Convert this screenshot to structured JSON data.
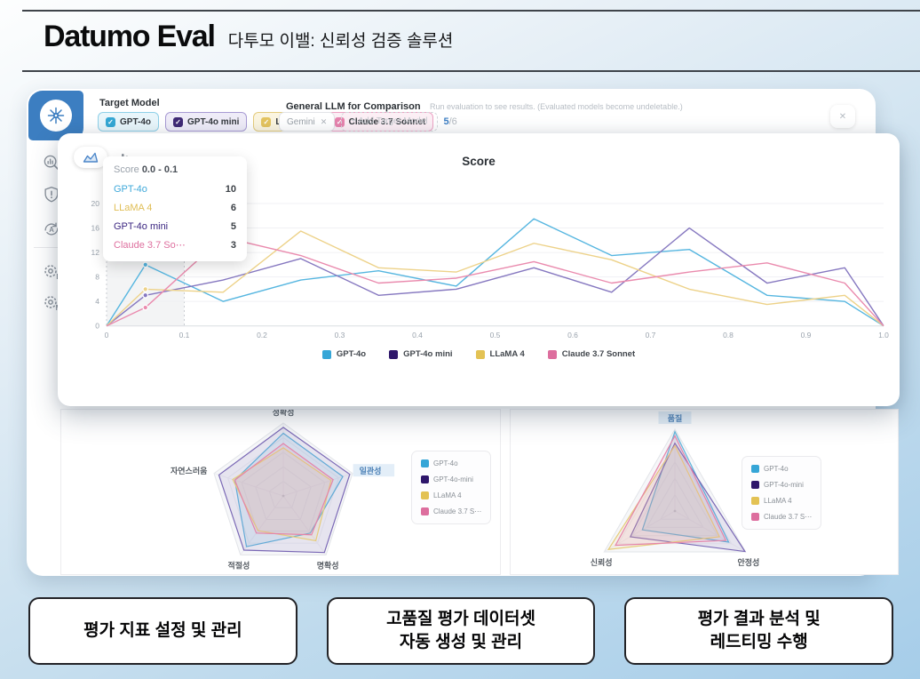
{
  "header": {
    "title": "Datumo Eval",
    "subtitle": "다투모 이밸: 신뢰성 검증 솔루션"
  },
  "window": {
    "close_icon": "✕",
    "target_model": {
      "label": "Target Model",
      "check_glyph": "✓",
      "models": [
        {
          "name": "GPT-4o",
          "checked": true,
          "bg": "#E9F6FB",
          "border": "#8FD0E8",
          "check_bg": "#35A7D4"
        },
        {
          "name": "GPT-4o mini",
          "checked": true,
          "bg": "#EFECF8",
          "border": "#A89BD4",
          "check_bg": "#402A75"
        },
        {
          "name": "LLaMA 4",
          "checked": true,
          "bg": "#FBF5E0",
          "border": "#E4CC7D",
          "check_bg": "#E4C45F"
        },
        {
          "name": "Claude 3.7 Sonnet",
          "checked": true,
          "bg": "#FCEFF5",
          "border": "#EDA3C4",
          "check_bg": "#E684AE"
        }
      ]
    },
    "comparison": {
      "label": "General LLM for Comparison",
      "note": "Run evaluation to see results. (Evaluated models become undeletable.)",
      "chip_label": "Gemini",
      "chip_remove_icon": "✕",
      "add_label": "+ Add Target Model",
      "count_used": "5",
      "count_total": "/6"
    },
    "sidebar": {
      "gear_e_label": "E",
      "gear_m_label": "M",
      "icons": [
        "network-logo-icon",
        "analytics-search-icon",
        "shield-alert-icon",
        "auto-translate-icon",
        "gear-e-icon",
        "gear-m-icon"
      ]
    },
    "panel_toggles": [
      {
        "icon": "line-chart-icon",
        "active": true
      },
      {
        "icon": "bar-chart-icon",
        "active": false
      }
    ]
  },
  "tooltip": {
    "metric": "Score",
    "range": "0.0 - 0.1",
    "rows": [
      {
        "name": "GPT-4o",
        "value": "10",
        "color": "#3FA9DA"
      },
      {
        "name": "LLaMA 4",
        "value": "6",
        "color": "#E0BE55"
      },
      {
        "name": "GPT-4o mini",
        "value": "5",
        "color": "#3A2580"
      },
      {
        "name": "Claude 3.7 So⋯",
        "value": "3",
        "color": "#DE6F9E"
      }
    ]
  },
  "chart_data": [
    {
      "id": "score_distribution",
      "type": "line",
      "title": "Score",
      "xlabel": "",
      "ylabel": "",
      "xlim": [
        0,
        1.0
      ],
      "ylim": [
        0,
        20
      ],
      "xticks": [
        0,
        0.1,
        0.2,
        0.3,
        0.4,
        0.5,
        0.6,
        0.7,
        0.8,
        0.9,
        1.0
      ],
      "yticks": [
        0,
        4,
        8,
        12,
        16,
        20
      ],
      "grid": true,
      "legend_position": "bottom",
      "highlight_band": [
        0,
        0.1
      ],
      "marker_x": 0.05,
      "x": [
        0,
        0.05,
        0.15,
        0.25,
        0.35,
        0.45,
        0.55,
        0.65,
        0.75,
        0.85,
        0.95,
        1.0
      ],
      "series": [
        {
          "name": "GPT-4o",
          "color": "#56B6E0",
          "swatch": "#36A6D7",
          "values": [
            0,
            10,
            4,
            7.5,
            9,
            6.5,
            17.5,
            11.5,
            12.5,
            5,
            4,
            0
          ]
        },
        {
          "name": "GPT-4o mini",
          "color": "#8678C0",
          "swatch": "#2F176B",
          "values": [
            0,
            5,
            7.5,
            11,
            5,
            6,
            9.5,
            5.5,
            16,
            7,
            9.5,
            0
          ]
        },
        {
          "name": "LLaMA 4",
          "color": "#EDD289",
          "swatch": "#E3C254",
          "values": [
            0,
            6,
            5.5,
            15.5,
            9.5,
            8.8,
            13.5,
            10.8,
            6,
            3.5,
            5,
            0
          ]
        },
        {
          "name": "Claude 3.7 Sonnet",
          "color": "#EA8BAE",
          "swatch": "#DD6E9E",
          "values": [
            0,
            3,
            14.5,
            11.5,
            7,
            7.8,
            10.5,
            7,
            8.8,
            10.3,
            7,
            0
          ]
        }
      ]
    },
    {
      "id": "radar_pentagon",
      "type": "radar",
      "axes": [
        "정확성",
        "일관성",
        "명확성",
        "적절성",
        "자연스러움"
      ],
      "highlight_axis": 1,
      "max": 10,
      "series": [
        {
          "name": "GPT-4o",
          "color": "#5FB5DC",
          "swatch": "#36A6D7",
          "values": [
            8.6,
            8.6,
            6.3,
            8.6,
            7.0
          ]
        },
        {
          "name": "GPT-4o-mini",
          "color": "#7A68B5",
          "swatch": "#2F176B",
          "values": [
            9.4,
            9.6,
            9.6,
            9.2,
            9.3
          ]
        },
        {
          "name": "LLaMA 4",
          "color": "#E6CC7A",
          "swatch": "#E3C254",
          "values": [
            6.6,
            6.9,
            7.6,
            5.9,
            7.3
          ]
        },
        {
          "name": "Claude 3.7 S⋯",
          "color": "#E584A9",
          "swatch": "#DD6E9E",
          "values": [
            7.2,
            7.2,
            6.6,
            6.3,
            7.0
          ]
        }
      ]
    },
    {
      "id": "radar_triangle",
      "type": "radar",
      "axes": [
        "품질",
        "안정성",
        "신뢰성"
      ],
      "highlight_axis": 0,
      "max": 10,
      "series": [
        {
          "name": "GPT-4o",
          "color": "#5FB5DC",
          "swatch": "#36A6D7",
          "values": [
            9.7,
            7.6,
            4.6
          ]
        },
        {
          "name": "GPT-4o-mini",
          "color": "#7A68B5",
          "swatch": "#2F176B",
          "values": [
            8.3,
            9.9,
            6.3
          ]
        },
        {
          "name": "LLaMA 4",
          "color": "#E6CC7A",
          "swatch": "#E3C254",
          "values": [
            8.0,
            6.3,
            9.4
          ]
        },
        {
          "name": "Claude 3.7 S⋯",
          "color": "#E584A9",
          "swatch": "#DD6E9E",
          "values": [
            9.2,
            7.2,
            8.4
          ]
        }
      ]
    }
  ],
  "cards": [
    {
      "lines": [
        "평가 지표 설정 및 관리"
      ]
    },
    {
      "lines": [
        "고품질 평가 데이터셋",
        "자동 생성 및 관리"
      ]
    },
    {
      "lines": [
        "평가 결과 분석 및",
        "레드티밍 수행"
      ]
    }
  ]
}
